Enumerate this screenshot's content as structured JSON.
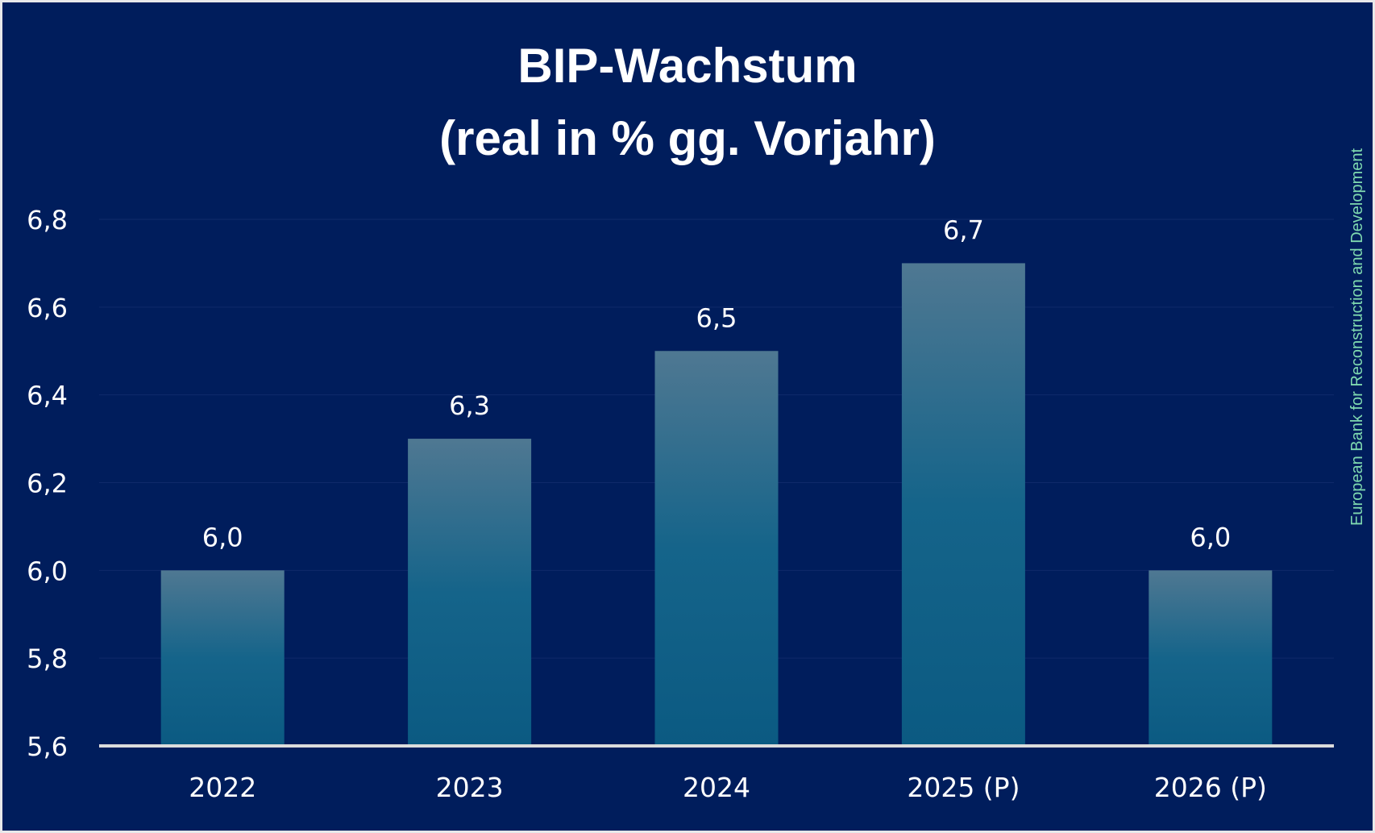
{
  "colors": {
    "background": "#001d5c",
    "bar_top": "#4f7892",
    "bar_bottom": "#0b5a82",
    "axis": "#dcdcdc",
    "grid": "#0f2a6a",
    "text": "#ffffff",
    "source_text": "#7fd9b0"
  },
  "source": "European Bank for Reconstruction and Development",
  "chart_data": {
    "type": "bar",
    "title": "BIP-Wachstum",
    "subtitle": "(real in % gg. Vorjahr)",
    "categories": [
      "2022",
      "2023",
      "2024",
      "2025 (P)",
      "2026 (P)"
    ],
    "values": [
      6.0,
      6.3,
      6.5,
      6.7,
      6.0
    ],
    "value_labels": [
      "6,0",
      "6,3",
      "6,5",
      "6,7",
      "6,0"
    ],
    "xlabel": "",
    "ylabel": "",
    "ylim": [
      5.6,
      6.8
    ],
    "yticks": [
      5.6,
      5.8,
      6.0,
      6.2,
      6.4,
      6.6,
      6.8
    ],
    "ytick_labels": [
      "5,6",
      "5,8",
      "6,0",
      "6,2",
      "6,4",
      "6,6",
      "6,8"
    ],
    "grid": true,
    "legend": "none"
  }
}
